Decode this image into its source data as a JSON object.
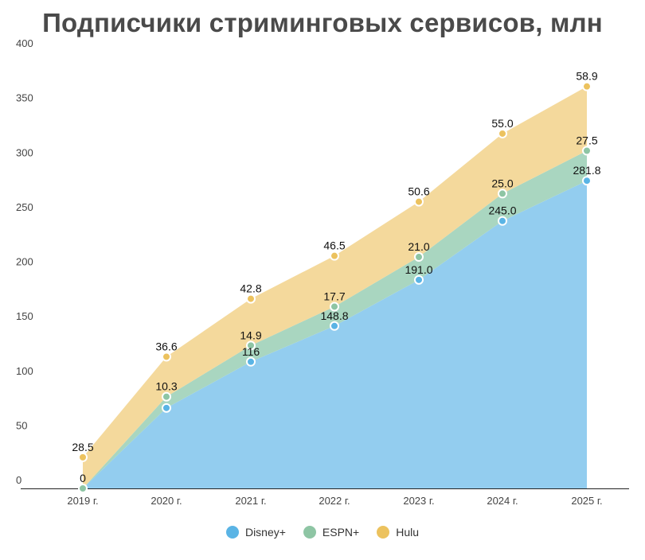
{
  "chart_data": {
    "type": "area",
    "stacked": true,
    "title": "Подписчики стриминговых сервисов, млн",
    "categories": [
      "2019 г.",
      "2020 г.",
      "2021 г.",
      "2022 г.",
      "2023 г.",
      "2024 г.",
      "2025 г."
    ],
    "ylim": [
      0,
      400
    ],
    "yticks": [
      0,
      50,
      100,
      150,
      200,
      250,
      300,
      350,
      400
    ],
    "grid": false,
    "legend_position": "bottom",
    "series": [
      {
        "name": "Disney+",
        "color": "#5ab4e5",
        "fill": "#93cdef",
        "values": [
          0,
          73.7,
          116,
          148.8,
          191.0,
          245.0,
          281.8
        ],
        "labels": [
          "",
          "",
          "116",
          "148.8",
          "191.0",
          "245.0",
          "281.8"
        ]
      },
      {
        "name": "ESPN+",
        "color": "#8ec5a4",
        "fill": "#a9d6c0",
        "values": [
          0,
          10.3,
          14.9,
          17.7,
          21.0,
          25.0,
          27.5
        ],
        "labels": [
          "0",
          "10.3",
          "14.9",
          "17.7",
          "21.0",
          "25.0",
          "27.5"
        ]
      },
      {
        "name": "Hulu",
        "color": "#ecc25e",
        "fill": "#f4d99c",
        "values": [
          28.5,
          36.6,
          42.8,
          46.5,
          50.6,
          55.0,
          58.9
        ],
        "labels": [
          "28.5",
          "36.6",
          "42.8",
          "46.5",
          "50.6",
          "55.0",
          "58.9"
        ]
      }
    ]
  }
}
